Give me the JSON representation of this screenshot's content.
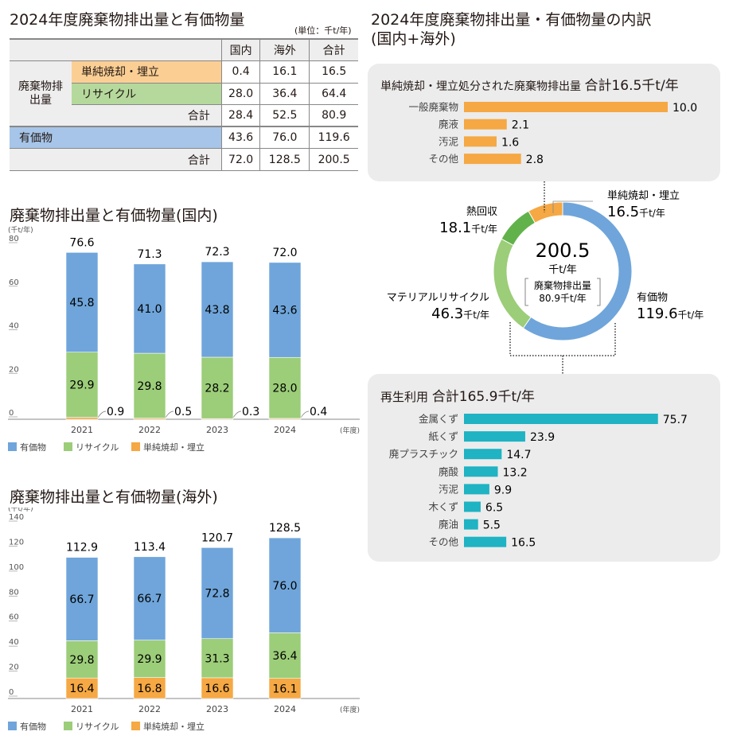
{
  "table": {
    "title": "2024年度廃棄物排出量と有価物量",
    "unit": "(単位：千t/年)",
    "columns": [
      "国内",
      "海外",
      "合計"
    ],
    "group_label": "廃棄物排出量",
    "rows": [
      {
        "label": "単純焼却・埋立",
        "values": [
          "0.4",
          "16.1",
          "16.5"
        ]
      },
      {
        "label": "リサイクル",
        "values": [
          "28.0",
          "36.4",
          "64.4"
        ]
      },
      {
        "label": "合計",
        "values": [
          "28.4",
          "52.5",
          "80.9"
        ]
      },
      {
        "label": "有価物",
        "values": [
          "43.6",
          "76.0",
          "119.6"
        ]
      },
      {
        "label": "合計",
        "values": [
          "72.0",
          "128.5",
          "200.5"
        ]
      }
    ]
  },
  "colors": {
    "valuables": "#6fa5da",
    "recycle": "#9ccd79",
    "incineration": "#f5a843",
    "thermal": "#62b24b",
    "recycling_bar": "#1fb3c3",
    "panel": "#ececec"
  },
  "chart_data": [
    {
      "type": "bar",
      "stacked": true,
      "title": "廃棄物排出量と有価物量(国内)",
      "ylabel": "(千t/年)",
      "xlabel": "(年度)",
      "ylim": [
        0,
        80
      ],
      "yticks": [
        0,
        20,
        40,
        60,
        80
      ],
      "categories": [
        "2021",
        "2022",
        "2023",
        "2024"
      ],
      "series": [
        {
          "name": "単純焼却・埋立",
          "values": [
            0.9,
            0.5,
            0.3,
            0.4
          ]
        },
        {
          "name": "リサイクル",
          "values": [
            29.9,
            29.8,
            28.2,
            28.0
          ]
        },
        {
          "name": "有価物",
          "values": [
            45.8,
            41.0,
            43.8,
            43.6
          ]
        }
      ],
      "totals": [
        76.6,
        71.3,
        72.3,
        72.0
      ],
      "legend": [
        "有価物",
        "リサイクル",
        "単純焼却・埋立"
      ],
      "legend_position": "bottom-left"
    },
    {
      "type": "bar",
      "stacked": true,
      "title": "廃棄物排出量と有価物量(海外)",
      "ylabel": "(千t/年)",
      "xlabel": "(年度)",
      "ylim": [
        0,
        140
      ],
      "yticks": [
        0,
        20,
        40,
        60,
        80,
        100,
        120,
        140
      ],
      "categories": [
        "2021",
        "2022",
        "2023",
        "2024"
      ],
      "series": [
        {
          "name": "単純焼却・埋立",
          "values": [
            16.4,
            16.8,
            16.6,
            16.1
          ]
        },
        {
          "name": "リサイクル",
          "values": [
            29.8,
            29.9,
            31.3,
            36.4
          ]
        },
        {
          "name": "有価物",
          "values": [
            66.7,
            66.7,
            72.8,
            76.0
          ]
        }
      ],
      "totals": [
        112.9,
        113.4,
        120.7,
        128.5
      ],
      "legend": [
        "有価物",
        "リサイクル",
        "単純焼却・埋立"
      ],
      "legend_position": "bottom-left"
    },
    {
      "type": "pie",
      "donut": true,
      "title": "2024年度廃棄物排出量・有価物量の内訳",
      "subtitle": "(国内+海外)",
      "center_value": "200.5",
      "center_unit": "千t/年",
      "center_note": [
        "廃棄物排出量",
        "80.9千t/年"
      ],
      "slices": [
        {
          "name": "有価物",
          "value": 119.6,
          "label": "119.6",
          "unit": "千t/年"
        },
        {
          "name": "マテリアルリサイクル",
          "value": 46.3,
          "label": "46.3",
          "unit": "千t/年"
        },
        {
          "name": "熱回収",
          "value": 18.1,
          "label": "18.1",
          "unit": "千t/年"
        },
        {
          "name": "単純焼却・埋立",
          "value": 16.5,
          "label": "16.5",
          "unit": "千t/年"
        }
      ]
    },
    {
      "type": "bar",
      "orientation": "horizontal",
      "title": "単純焼却・埋立処分された廃棄物排出量",
      "total_label": "合計16.5千t/年",
      "categories": [
        "一般廃棄物",
        "廃液",
        "汚泥",
        "その他"
      ],
      "values": [
        10.0,
        2.1,
        1.6,
        2.8
      ]
    },
    {
      "type": "bar",
      "orientation": "horizontal",
      "title": "再生利用",
      "total_label": "合計165.9千t/年",
      "categories": [
        "金属くず",
        "紙くず",
        "廃プラスチック",
        "廃酸",
        "汚泥",
        "木くず",
        "廃油",
        "その他"
      ],
      "values": [
        75.7,
        23.9,
        14.7,
        13.2,
        9.9,
        6.5,
        5.5,
        16.5
      ]
    }
  ]
}
